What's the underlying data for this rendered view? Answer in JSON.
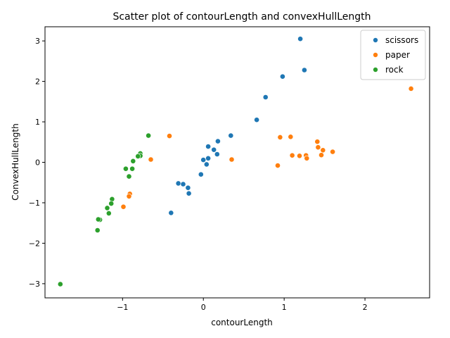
{
  "chart_data": {
    "type": "scatter",
    "title": "Scatter plot of contourLength and convexHullLength",
    "xlabel": "contourLength",
    "ylabel": "ConvexHullLength",
    "xlim": [
      -1.96,
      2.8
    ],
    "ylim": [
      -3.35,
      3.35
    ],
    "xticks": [
      -1,
      0,
      1,
      2
    ],
    "yticks": [
      -3,
      -2,
      -1,
      0,
      1,
      2,
      3
    ],
    "x_tick_labels": [
      "−1",
      "0",
      "1",
      "2"
    ],
    "y_tick_labels": [
      "−3",
      "−2",
      "−1",
      "0",
      "1",
      "2",
      "3"
    ],
    "grid": false,
    "legend_position": "top-right",
    "series": [
      {
        "name": "scissors",
        "color": "#1f77b4",
        "points": [
          [
            1.2,
            3.05
          ],
          [
            1.25,
            2.28
          ],
          [
            0.98,
            2.12
          ],
          [
            0.77,
            1.61
          ],
          [
            0.66,
            1.05
          ],
          [
            0.34,
            0.66
          ],
          [
            0.18,
            0.52
          ],
          [
            0.06,
            0.39
          ],
          [
            0.13,
            0.31
          ],
          [
            0.17,
            0.2
          ],
          [
            0.06,
            0.1
          ],
          [
            0.0,
            0.06
          ],
          [
            0.04,
            -0.05
          ],
          [
            -0.03,
            -0.3
          ],
          [
            -0.31,
            -0.52
          ],
          [
            -0.25,
            -0.54
          ],
          [
            -0.19,
            -0.63
          ],
          [
            -0.18,
            -0.77
          ],
          [
            -0.4,
            -1.25
          ]
        ]
      },
      {
        "name": "paper",
        "color": "#ff7f0e",
        "points": [
          [
            2.57,
            1.82
          ],
          [
            0.95,
            0.62
          ],
          [
            1.08,
            0.63
          ],
          [
            -0.42,
            0.65
          ],
          [
            1.41,
            0.51
          ],
          [
            1.42,
            0.37
          ],
          [
            1.48,
            0.3
          ],
          [
            1.6,
            0.26
          ],
          [
            1.1,
            0.17
          ],
          [
            1.19,
            0.16
          ],
          [
            1.27,
            0.17
          ],
          [
            1.46,
            0.18
          ],
          [
            1.28,
            0.1
          ],
          [
            0.35,
            0.07
          ],
          [
            -0.65,
            0.07
          ],
          [
            0.92,
            -0.08
          ],
          [
            -0.91,
            -0.78
          ],
          [
            -0.92,
            -0.84
          ],
          [
            -0.99,
            -1.1
          ]
        ]
      },
      {
        "name": "rock",
        "color": "#2ca02c",
        "points": [
          [
            -0.68,
            0.66
          ],
          [
            -0.78,
            0.22
          ],
          [
            -0.78,
            0.16
          ],
          [
            -0.81,
            0.15
          ],
          [
            -0.87,
            0.03
          ],
          [
            -0.96,
            -0.16
          ],
          [
            -0.88,
            -0.16
          ],
          [
            -0.92,
            -0.35
          ],
          [
            -1.13,
            -0.91
          ],
          [
            -1.14,
            -1.02
          ],
          [
            -1.19,
            -1.13
          ],
          [
            -1.17,
            -1.26
          ],
          [
            -1.28,
            -1.42
          ],
          [
            -1.3,
            -1.41
          ],
          [
            -1.31,
            -1.68
          ],
          [
            -1.77,
            -3.01
          ]
        ]
      }
    ]
  }
}
